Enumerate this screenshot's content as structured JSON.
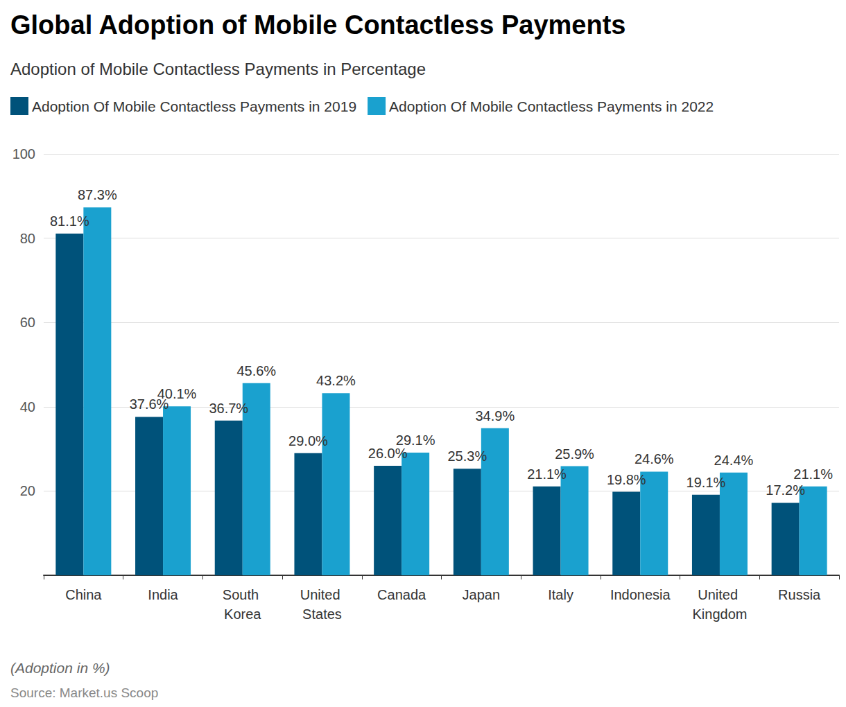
{
  "chart_data": {
    "type": "bar",
    "title": "Global Adoption of Mobile Contactless Payments",
    "subtitle": "Adoption of Mobile Contactless Payments in Percentage",
    "note": "(Adoption in %)",
    "source": "Source: Market.us Scoop",
    "categories": [
      "China",
      "India",
      "South Korea",
      "United States",
      "Canada",
      "Japan",
      "Italy",
      "Indonesia",
      "United Kingdom",
      "Russia"
    ],
    "series": [
      {
        "name": "Adoption Of Mobile Contactless Payments in 2019",
        "color": "#00527a",
        "values": [
          81.1,
          37.6,
          36.7,
          29.0,
          26.0,
          25.3,
          21.1,
          19.8,
          19.1,
          17.2
        ],
        "value_labels": [
          "81.1%",
          "37.6%",
          "36.7%",
          "29.0%",
          "26.0%",
          "25.3%",
          "21.1%",
          "19.8%",
          "19.1%",
          "17.2%"
        ]
      },
      {
        "name": "Adoption Of Mobile Contactless Payments in 2022",
        "color": "#1aa1cf",
        "values": [
          87.3,
          40.1,
          45.6,
          43.2,
          29.1,
          34.9,
          25.9,
          24.6,
          24.4,
          21.1
        ],
        "value_labels": [
          "87.3%",
          "40.1%",
          "45.6%",
          "43.2%",
          "29.1%",
          "34.9%",
          "25.9%",
          "24.6%",
          "24.4%",
          "21.1%"
        ]
      }
    ],
    "ylim": [
      0,
      100
    ],
    "yticks": [
      20,
      40,
      60,
      80,
      100
    ],
    "grid": true,
    "legend": "top-left",
    "data_labels": true
  }
}
